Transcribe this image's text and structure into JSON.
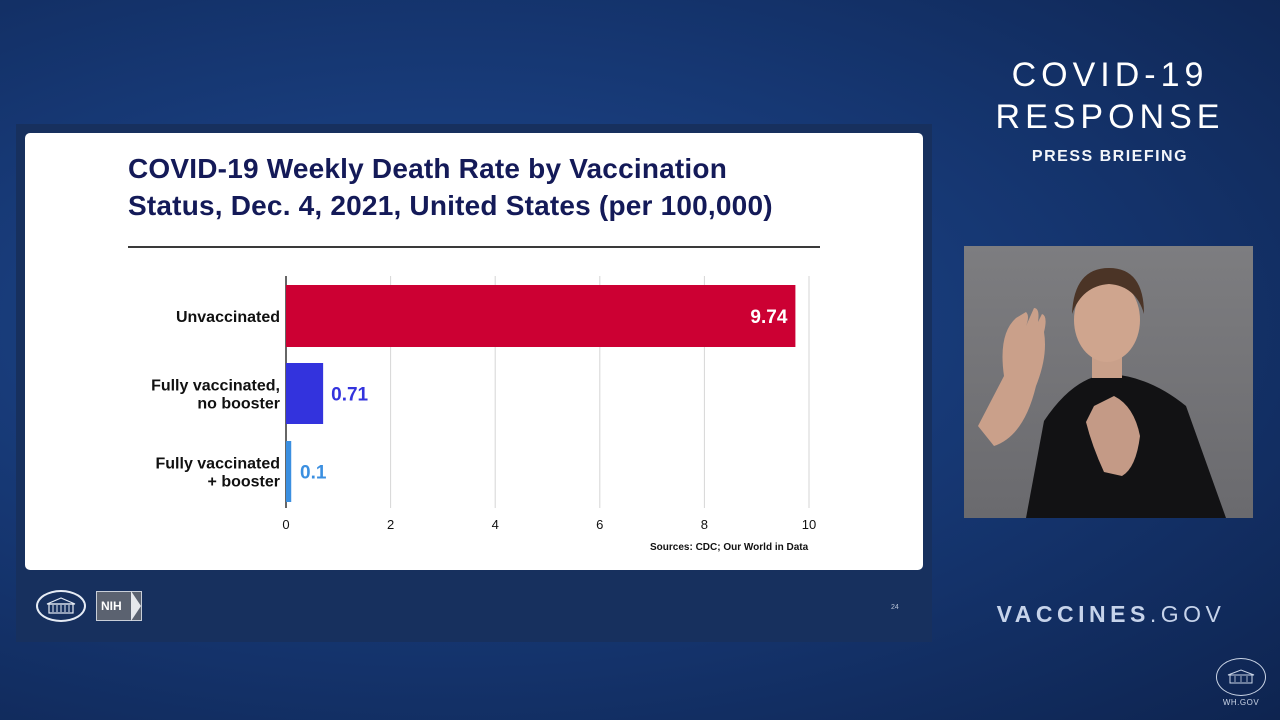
{
  "slide": {
    "title": "COVID-19 Weekly Death Rate by Vaccination Status, Dec. 4, 2021, United States (per 100,000)",
    "sources": "Sources: CDC; Our World in Data",
    "page_number": "24",
    "nih_label": "NIH"
  },
  "branding": {
    "line1": "COVID-19",
    "line2": "RESPONSE",
    "line3": "PRESS BRIEFING",
    "url_main": "VACCINES",
    "url_suffix": ".GOV",
    "corner_label": "WH.GOV"
  },
  "colors": {
    "unvaccinated": "#cc0033",
    "no_booster": "#3333dd",
    "booster": "#3b8fe0",
    "title": "#141a58"
  },
  "chart_data": {
    "type": "bar",
    "orientation": "horizontal",
    "title": "COVID-19 Weekly Death Rate by Vaccination Status, Dec. 4, 2021, United States (per 100,000)",
    "categories": [
      [
        "Unvaccinated"
      ],
      [
        "Fully vaccinated,",
        "no booster"
      ],
      [
        "Fully vaccinated",
        "+ booster"
      ]
    ],
    "values": [
      9.74,
      0.71,
      0.1
    ],
    "value_labels": [
      "9.74",
      "0.71",
      "0.1"
    ],
    "xlim": [
      0,
      10
    ],
    "xticks": [
      0,
      2,
      4,
      6,
      8,
      10
    ],
    "xlabel": "",
    "ylabel": "",
    "grid": "vertical",
    "legend": "none"
  }
}
